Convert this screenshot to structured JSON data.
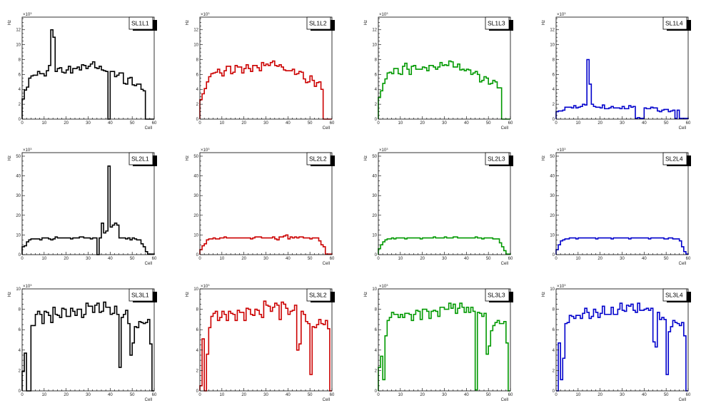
{
  "chart_data": [
    {
      "type": "bar",
      "title": "SL1L1",
      "xlabel": "Cell",
      "ylabel": "Hz",
      "exponent": "×10",
      "exponent_power": "3",
      "color": "#000000",
      "xlim": [
        0,
        60
      ],
      "ylim": [
        0,
        13.7
      ],
      "xticks": [
        0,
        10,
        20,
        30,
        40,
        50,
        60
      ],
      "yticks": [
        0,
        2,
        4,
        6,
        8,
        10,
        12
      ],
      "values": [
        2.7,
        3.9,
        4.3,
        5.5,
        5.8,
        5.9,
        5.9,
        6.4,
        6.1,
        6.1,
        5.8,
        6.5,
        7.2,
        12.0,
        11.0,
        6.4,
        6.8,
        6.9,
        6.3,
        6.2,
        6.6,
        7.1,
        6.2,
        6.8,
        6.8,
        7.0,
        6.6,
        7.3,
        7.2,
        6.8,
        7.1,
        7.4,
        7.7,
        6.9,
        6.8,
        7.1,
        6.6,
        6.5,
        6.4,
        0,
        6.4,
        6.4,
        5.7,
        5.9,
        6.2,
        6.2,
        4.8,
        4.7,
        5.5,
        5.6,
        4.6,
        4.5,
        4.7,
        4.7,
        4.0,
        3.8,
        0,
        0,
        0,
        0
      ]
    },
    {
      "type": "bar",
      "title": "SL1L2",
      "xlabel": "Cell",
      "ylabel": "Hz",
      "exponent": "×10",
      "exponent_power": "3",
      "color": "#cc0000",
      "xlim": [
        0,
        60
      ],
      "ylim": [
        0,
        13.7
      ],
      "xticks": [
        0,
        10,
        20,
        30,
        40,
        50,
        60
      ],
      "yticks": [
        0,
        2,
        4,
        6,
        8,
        10,
        12
      ],
      "values": [
        2.6,
        3.4,
        4.1,
        5.0,
        5.7,
        6.1,
        6.2,
        6.3,
        6.7,
        6.2,
        5.8,
        6.5,
        7.1,
        7.1,
        6.1,
        6.3,
        7.2,
        7.0,
        7.0,
        6.2,
        6.8,
        7.3,
        6.8,
        6.4,
        7.2,
        7.2,
        6.9,
        6.5,
        7.6,
        7.2,
        7.4,
        7.2,
        7.6,
        7.8,
        7.2,
        7.1,
        7.3,
        7.0,
        6.6,
        6.5,
        6.5,
        6.5,
        6.7,
        6.0,
        6.1,
        6.4,
        6.3,
        5.4,
        4.9,
        5.0,
        5.8,
        5.2,
        4.4,
        4.9,
        5.0,
        4.0,
        0,
        0,
        0,
        0
      ]
    },
    {
      "type": "bar",
      "title": "SL1L3",
      "xlabel": "Cell",
      "ylabel": "Hz",
      "exponent": "×10",
      "exponent_power": "3",
      "color": "#009900",
      "xlim": [
        0,
        60
      ],
      "ylim": [
        0,
        13.7
      ],
      "xticks": [
        0,
        10,
        20,
        30,
        40,
        50,
        60
      ],
      "yticks": [
        0,
        2,
        4,
        6,
        8,
        10,
        12
      ],
      "values": [
        2.9,
        3.8,
        4.8,
        5.4,
        6.2,
        6.3,
        6.1,
        6.8,
        6.8,
        6.1,
        6.0,
        7.1,
        7.5,
        6.7,
        6.0,
        7.1,
        7.2,
        6.7,
        6.7,
        6.7,
        7.0,
        6.9,
        6.5,
        7.2,
        7.2,
        7.0,
        6.7,
        7.0,
        7.6,
        7.2,
        7.3,
        7.2,
        7.8,
        7.7,
        7.0,
        7.0,
        7.4,
        6.6,
        6.7,
        6.5,
        6.7,
        6.6,
        6.0,
        6.2,
        6.4,
        6.0,
        5.0,
        5.2,
        5.7,
        5.5,
        4.7,
        4.8,
        5.2,
        5.0,
        4.2,
        4.2,
        0,
        0,
        0,
        0
      ]
    },
    {
      "type": "bar",
      "title": "SL1L4",
      "xlabel": "Cell",
      "ylabel": "Hz",
      "exponent": "×10",
      "exponent_power": "3",
      "color": "#0000cc",
      "xlim": [
        0,
        60
      ],
      "ylim": [
        0,
        13.7
      ],
      "xticks": [
        0,
        10,
        20,
        30,
        40,
        50,
        60
      ],
      "yticks": [
        0,
        2,
        4,
        6,
        8,
        10,
        12
      ],
      "values": [
        1.0,
        1.1,
        1.1,
        1.2,
        1.6,
        1.6,
        1.6,
        1.5,
        1.8,
        1.5,
        1.6,
        1.7,
        2.0,
        1.9,
        8.0,
        4.7,
        2.0,
        1.7,
        1.6,
        1.6,
        1.5,
        1.9,
        1.4,
        1.4,
        1.5,
        1.7,
        1.5,
        1.5,
        1.5,
        1.4,
        1.7,
        1.4,
        1.4,
        1.8,
        1.6,
        1.7,
        0.1,
        0.2,
        0.1,
        0.1,
        1.5,
        1.4,
        1.4,
        1.6,
        1.5,
        1.5,
        1.1,
        1.0,
        1.2,
        1.3,
        1.3,
        1.0,
        1.1,
        1.2,
        0.1,
        1.2,
        0.1,
        0.1,
        0.1,
        0.1
      ]
    },
    {
      "type": "bar",
      "title": "SL2L1",
      "xlabel": "Cell",
      "ylabel": "Hz",
      "exponent": "×10",
      "exponent_power": "3",
      "color": "#000000",
      "xlim": [
        0,
        60
      ],
      "ylim": [
        0,
        51.8
      ],
      "xticks": [
        0,
        10,
        20,
        30,
        40,
        50,
        60
      ],
      "yticks": [
        0,
        10,
        20,
        30,
        40,
        50
      ],
      "values": [
        4,
        4.5,
        6.5,
        7.5,
        8,
        8,
        8,
        8,
        7.5,
        8.5,
        8.5,
        8.5,
        8,
        7.5,
        8,
        9,
        8.5,
        8.5,
        8.5,
        8.5,
        8.5,
        8.5,
        8,
        8.5,
        8.5,
        8.5,
        9,
        9,
        8.5,
        8.5,
        8.5,
        8,
        8.5,
        8.5,
        0,
        8.5,
        16,
        11,
        12,
        45,
        14,
        15,
        16,
        15,
        8.5,
        8.5,
        8.5,
        8,
        8.5,
        7.5,
        8.5,
        8,
        7.5,
        7.5,
        5.5,
        4,
        1.5,
        0.3,
        0.3,
        0.3
      ]
    },
    {
      "type": "bar",
      "title": "SL2L2",
      "xlabel": "Cell",
      "ylabel": "Hz",
      "exponent": "×10",
      "exponent_power": "3",
      "color": "#cc0000",
      "xlim": [
        0,
        60
      ],
      "ylim": [
        0,
        51.8
      ],
      "xticks": [
        0,
        10,
        20,
        30,
        40,
        50,
        60
      ],
      "yticks": [
        0,
        10,
        20,
        30,
        40,
        50
      ],
      "values": [
        2.5,
        4.5,
        5.5,
        7.5,
        8,
        8,
        8.5,
        8,
        8,
        8.5,
        8.5,
        9,
        8.5,
        8.5,
        8.5,
        8.5,
        8.5,
        8.5,
        8.5,
        8.5,
        8.5,
        8.5,
        8.5,
        8,
        8.5,
        9,
        9,
        9,
        8.5,
        8.5,
        8.5,
        8.5,
        8.5,
        9,
        8,
        7.5,
        9,
        9,
        9.5,
        10,
        8,
        9,
        8.5,
        9,
        8.5,
        9,
        9,
        8.5,
        8.5,
        8.5,
        8,
        8.5,
        8.5,
        8.5,
        7,
        5,
        4,
        0.3,
        0.3,
        0.3
      ]
    },
    {
      "type": "bar",
      "title": "SL2L3",
      "xlabel": "Cell",
      "ylabel": "Hz",
      "exponent": "×10",
      "exponent_power": "3",
      "color": "#009900",
      "xlim": [
        0,
        60
      ],
      "ylim": [
        0,
        51.8
      ],
      "xticks": [
        0,
        10,
        20,
        30,
        40,
        50,
        60
      ],
      "yticks": [
        0,
        10,
        20,
        30,
        40,
        50
      ],
      "values": [
        3,
        5,
        6.5,
        7.5,
        8,
        8,
        8.5,
        8,
        8.5,
        8.5,
        8.5,
        8.5,
        8,
        8.5,
        8.5,
        8.5,
        8.5,
        8.5,
        8.5,
        8,
        8.5,
        8.5,
        8.5,
        8.5,
        8.5,
        9,
        8.5,
        8.5,
        8.5,
        8.5,
        9,
        8.5,
        8.5,
        8.5,
        9,
        9,
        8.5,
        8.5,
        8.5,
        8.5,
        8.5,
        8.5,
        8.5,
        8.5,
        9,
        8.5,
        8.5,
        8,
        8.5,
        8.5,
        8.5,
        8.5,
        8,
        8,
        8,
        6,
        4,
        2,
        0.3,
        0.3
      ]
    },
    {
      "type": "bar",
      "title": "SL2L4",
      "xlabel": "Cell",
      "ylabel": "Hz",
      "exponent": "×10",
      "exponent_power": "3",
      "color": "#0000cc",
      "xlim": [
        0,
        60
      ],
      "ylim": [
        0,
        51.8
      ],
      "xticks": [
        0,
        10,
        20,
        30,
        40,
        50,
        60
      ],
      "yticks": [
        0,
        10,
        20,
        30,
        40,
        50
      ],
      "values": [
        2.5,
        5,
        7,
        7.5,
        8,
        8,
        8.5,
        8.5,
        8.5,
        8,
        8.5,
        8.5,
        8.5,
        8.5,
        8.5,
        8.5,
        8.5,
        8.5,
        8,
        8.5,
        8.5,
        8.5,
        8.5,
        8.5,
        8.5,
        8,
        8.5,
        8.5,
        8.5,
        8.5,
        8.5,
        8.5,
        8.5,
        8,
        8.5,
        8.5,
        8.5,
        8.5,
        8.5,
        8.5,
        8.5,
        8.5,
        8,
        8.5,
        8.5,
        8.5,
        8.5,
        8.5,
        8.5,
        8,
        8,
        8.5,
        8.5,
        8,
        8,
        8,
        7,
        4,
        1.5,
        0.3
      ]
    },
    {
      "type": "bar",
      "title": "SL3L1",
      "xlabel": "Cell",
      "ylabel": "Hz",
      "exponent": "×10",
      "exponent_power": "3",
      "color": "#000000",
      "xlim": [
        0,
        60
      ],
      "ylim": [
        0,
        10
      ],
      "xticks": [
        0,
        10,
        20,
        30,
        40,
        50,
        60
      ],
      "yticks": [
        0,
        2,
        4,
        6,
        8,
        10
      ],
      "values": [
        1.9,
        3.7,
        0,
        0,
        6.4,
        6.4,
        7.5,
        7.8,
        7.5,
        6.6,
        7.8,
        7.7,
        7.4,
        6.7,
        8.2,
        7.5,
        7.4,
        7.2,
        8.1,
        8.0,
        7.3,
        7.3,
        8.1,
        7.8,
        7.4,
        8.0,
        8.0,
        7.2,
        7.5,
        8.6,
        8.3,
        8.3,
        7.7,
        8.4,
        8.6,
        7.7,
        7.8,
        8.7,
        8.2,
        8.2,
        7.5,
        7.6,
        8.3,
        7.5,
        2.3,
        7.2,
        7.5,
        7.9,
        6.6,
        3.5,
        4.7,
        6.3,
        6.2,
        6.8,
        6.7,
        6.6,
        6.7,
        7.0,
        4.6,
        0
      ]
    },
    {
      "type": "bar",
      "title": "SL3L2",
      "xlabel": "Cell",
      "ylabel": "Hz",
      "exponent": "×10",
      "exponent_power": "3",
      "color": "#cc0000",
      "xlim": [
        0,
        60
      ],
      "ylim": [
        0,
        10
      ],
      "xticks": [
        0,
        10,
        20,
        30,
        40,
        50,
        60
      ],
      "yticks": [
        0,
        2,
        4,
        6,
        8,
        10
      ],
      "values": [
        0.5,
        5.1,
        0,
        3.6,
        6.2,
        7.3,
        7.6,
        7.8,
        6.9,
        7.2,
        7.8,
        7.5,
        6.9,
        7.8,
        7.6,
        7.5,
        6.9,
        7.9,
        7.7,
        7.7,
        6.9,
        8.1,
        8.0,
        7.5,
        7.4,
        8.0,
        7.9,
        7.5,
        7.2,
        8.8,
        8.4,
        8.3,
        7.8,
        8.2,
        8.6,
        8.4,
        7.0,
        8.7,
        8.5,
        8.1,
        7.5,
        7.8,
        7.9,
        8.4,
        4.0,
        4.6,
        7.8,
        7.5,
        6.8,
        6.6,
        1.6,
        6.3,
        6.2,
        6.5,
        7.0,
        6.6,
        6.5,
        6.9,
        6.1,
        0
      ]
    },
    {
      "type": "bar",
      "title": "SL3L3",
      "xlabel": "Cell",
      "ylabel": "Hz",
      "exponent": "×10",
      "exponent_power": "3",
      "color": "#009900",
      "xlim": [
        0,
        60
      ],
      "ylim": [
        0,
        10
      ],
      "xticks": [
        0,
        10,
        20,
        30,
        40,
        50,
        60
      ],
      "yticks": [
        0,
        2,
        4,
        6,
        8,
        10
      ],
      "values": [
        2.3,
        3.4,
        1.1,
        5.4,
        6.9,
        7.2,
        7.7,
        7.5,
        7.5,
        7.2,
        7.5,
        7.2,
        7.6,
        7.6,
        7.5,
        6.9,
        7.5,
        7.9,
        7.8,
        7.0,
        8.0,
        8.0,
        7.8,
        7.1,
        7.8,
        7.9,
        7.8,
        7.3,
        8.2,
        8.2,
        8.0,
        8.0,
        8.6,
        8.1,
        8.5,
        7.6,
        8.1,
        8.6,
        8.2,
        7.7,
        8.2,
        7.7,
        8.2,
        7.8,
        0.1,
        7.7,
        7.6,
        7.3,
        7.6,
        3.6,
        4.4,
        5.9,
        6.4,
        6.7,
        6.9,
        6.6,
        6.6,
        6.8,
        4.7,
        0
      ]
    },
    {
      "type": "bar",
      "title": "SL3L4",
      "xlabel": "Cell",
      "ylabel": "Hz",
      "exponent": "×10",
      "exponent_power": "3",
      "color": "#0000cc",
      "xlim": [
        0,
        60
      ],
      "ylim": [
        0,
        10
      ],
      "xticks": [
        0,
        10,
        20,
        30,
        40,
        50,
        60
      ],
      "yticks": [
        0,
        2,
        4,
        6,
        8,
        10
      ],
      "values": [
        0,
        4.7,
        1.1,
        3.2,
        6.6,
        6.7,
        7.4,
        7.3,
        7.1,
        7.4,
        7.4,
        7.1,
        7.6,
        8.1,
        7.7,
        7.1,
        7.3,
        8.0,
        7.7,
        7.2,
        7.6,
        8.3,
        7.5,
        7.5,
        7.5,
        8.2,
        7.5,
        7.5,
        8.0,
        8.6,
        7.9,
        7.8,
        8.4,
        8.3,
        8.5,
        7.9,
        7.7,
        8.6,
        7.9,
        7.9,
        8.0,
        8.1,
        7.9,
        8.1,
        4.8,
        4.3,
        7.7,
        7.0,
        7.2,
        7.0,
        1.6,
        5.8,
        6.3,
        6.9,
        6.7,
        6.6,
        6.4,
        6.7,
        5.4,
        0
      ]
    }
  ]
}
